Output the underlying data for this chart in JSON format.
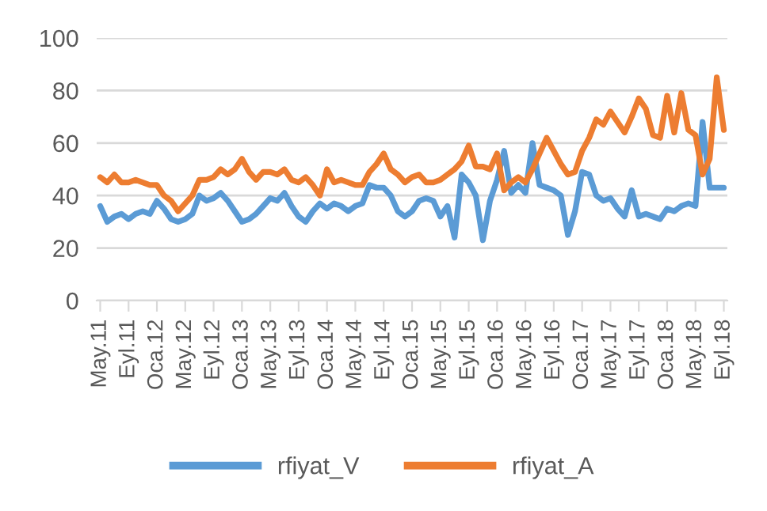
{
  "chart_data": {
    "type": "line",
    "categories": [
      "May.11",
      null,
      null,
      null,
      "Eyl.11",
      null,
      null,
      null,
      "Oca.12",
      null,
      null,
      null,
      "May.12",
      null,
      null,
      null,
      "Eyl.12",
      null,
      null,
      null,
      "Oca.13",
      null,
      null,
      null,
      "May.13",
      null,
      null,
      null,
      "Eyl.13",
      null,
      null,
      null,
      "Oca.14",
      null,
      null,
      null,
      "May.14",
      null,
      null,
      null,
      "Eyl.14",
      null,
      null,
      null,
      "Oca.15",
      null,
      null,
      null,
      "May.15",
      null,
      null,
      null,
      "Eyl.15",
      null,
      null,
      null,
      "Oca.16",
      null,
      null,
      null,
      "May.16",
      null,
      null,
      null,
      "Eyl.16",
      null,
      null,
      null,
      "Oca.17",
      null,
      null,
      null,
      "May.17",
      null,
      null,
      null,
      "Eyl.17",
      null,
      null,
      null,
      "Oca.18",
      null,
      null,
      null,
      "May.18",
      null,
      null,
      null,
      "Eyl.18"
    ],
    "series": [
      {
        "name": "rfiyat_V",
        "color": "#5b9bd5",
        "values": [
          36,
          30,
          32,
          33,
          31,
          33,
          34,
          33,
          38,
          35,
          31,
          30,
          31,
          33,
          40,
          38,
          39,
          41,
          38,
          34,
          30,
          31,
          33,
          36,
          39,
          38,
          41,
          36,
          32,
          30,
          34,
          37,
          35,
          37,
          36,
          34,
          36,
          37,
          44,
          43,
          43,
          40,
          34,
          32,
          34,
          38,
          39,
          38,
          32,
          36,
          24,
          48,
          45,
          40,
          23,
          38,
          46,
          57,
          41,
          44,
          41,
          60,
          44,
          43,
          42,
          40,
          25,
          34,
          49,
          48,
          40,
          38,
          39,
          35,
          32,
          42,
          32,
          33,
          32,
          31,
          35,
          34,
          36,
          37,
          36,
          68,
          43,
          43,
          43
        ]
      },
      {
        "name": "rfiyat_A",
        "color": "#ed7d31",
        "values": [
          47,
          45,
          48,
          45,
          45,
          46,
          45,
          44,
          44,
          40,
          38,
          34,
          37,
          40,
          46,
          46,
          47,
          50,
          48,
          50,
          54,
          49,
          46,
          49,
          49,
          48,
          50,
          46,
          45,
          47,
          44,
          40,
          50,
          45,
          46,
          45,
          44,
          44,
          49,
          52,
          56,
          50,
          48,
          45,
          47,
          48,
          45,
          45,
          46,
          48,
          50,
          53,
          59,
          51,
          51,
          50,
          56,
          42,
          45,
          47,
          45,
          50,
          56,
          62,
          57,
          52,
          48,
          49,
          57,
          62,
          69,
          67,
          72,
          68,
          64,
          70,
          77,
          73,
          63,
          62,
          78,
          64,
          79,
          65,
          63,
          48,
          54,
          85,
          65
        ]
      }
    ],
    "ylim": [
      0,
      100
    ],
    "yticks": [
      0,
      20,
      40,
      60,
      80,
      100
    ],
    "grid": "y",
    "legend": "bottom",
    "marker": "none",
    "line_style": "solid"
  }
}
